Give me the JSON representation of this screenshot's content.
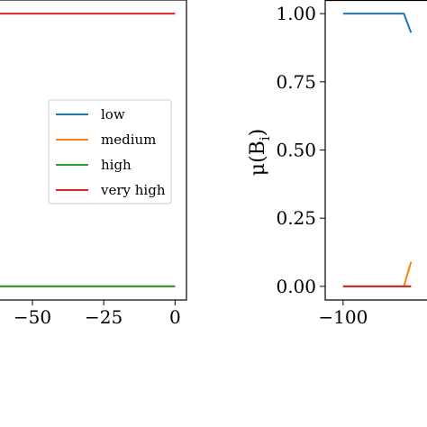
{
  "chart_data": [
    {
      "type": "line",
      "title": "",
      "xlabel": "",
      "ylabel": "",
      "xlim": [
        -62,
        4
      ],
      "ylim": [
        -0.05,
        1.05
      ],
      "x_ticks": [
        {
          "value": -50,
          "label": "−50"
        },
        {
          "value": -25,
          "label": "−25"
        },
        {
          "value": 0,
          "label": "0"
        }
      ],
      "y_ticks": [],
      "legend_position": "center-right",
      "series": [
        {
          "name": "low",
          "color": "#1f77b4",
          "points": [
            [
              -62,
              0
            ],
            [
              0,
              0
            ]
          ]
        },
        {
          "name": "medium",
          "color": "#ff7f0e",
          "points": [
            [
              -62,
              0
            ],
            [
              0,
              0
            ]
          ]
        },
        {
          "name": "high",
          "color": "#2ca02c",
          "points": [
            [
              -62,
              0
            ],
            [
              0,
              0
            ]
          ]
        },
        {
          "name": "very high",
          "color": "#d62728",
          "points": [
            [
              -62,
              1
            ],
            [
              0,
              1
            ]
          ]
        }
      ]
    },
    {
      "type": "line",
      "title": "",
      "xlabel": "",
      "ylabel": "μ(B_i)",
      "ylabel_base": "μ(B",
      "ylabel_sub": "i",
      "ylabel_close": ")",
      "xlim": [
        -105,
        -70
      ],
      "ylim": [
        -0.05,
        1.05
      ],
      "x_ticks": [
        {
          "value": -100,
          "label": "−100"
        }
      ],
      "y_ticks": [
        {
          "value": 0.0,
          "label": "0.00"
        },
        {
          "value": 0.25,
          "label": "0.25"
        },
        {
          "value": 0.5,
          "label": "0.50"
        },
        {
          "value": 0.75,
          "label": "0.75"
        },
        {
          "value": 1.0,
          "label": "1.00"
        }
      ],
      "series": [
        {
          "color": "#1f77b4",
          "points": [
            [
              -100,
              1
            ],
            [
              -83,
              1
            ],
            [
              -81,
              0.93
            ]
          ]
        },
        {
          "color": "#ff7f0e",
          "points": [
            [
              -100,
              0
            ],
            [
              -83,
              0
            ],
            [
              -81,
              0.09
            ]
          ]
        },
        {
          "color": "#2ca02c",
          "points": [
            [
              -100,
              0
            ],
            [
              -81,
              0
            ]
          ]
        },
        {
          "color": "#d62728",
          "points": [
            [
              -100,
              0
            ],
            [
              -81,
              0
            ]
          ]
        }
      ]
    }
  ]
}
